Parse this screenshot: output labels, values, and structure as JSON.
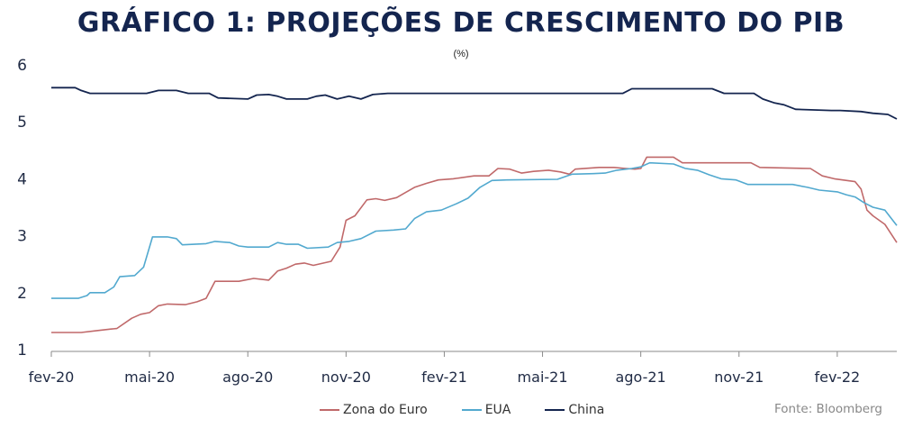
{
  "chart_data": {
    "type": "line",
    "title": "GRÁFICO 1: PROJEÇÕES DE CRESCIMENTO DO PIB",
    "subtitle": "(%)",
    "ylim": [
      1,
      6
    ],
    "yticks": [
      "1",
      "2",
      "3",
      "4",
      "5",
      "6"
    ],
    "xticks": [
      "fev-20",
      "mai-20",
      "ago-20",
      "nov-20",
      "fev-21",
      "mai-21",
      "ago-21",
      "nov-21",
      "fev-22"
    ],
    "xlim": [
      0,
      27.6
    ],
    "grid": false,
    "legend_position": "bottom",
    "source": "Fonte: Bloomberg",
    "series": [
      {
        "name": "Zona do Euro",
        "color": "#c0696a",
        "points": [
          [
            0,
            1.3
          ],
          [
            1.0,
            1.3
          ],
          [
            1.5,
            1.33
          ],
          [
            2.0,
            1.36
          ],
          [
            2.2,
            1.37
          ],
          [
            2.7,
            1.55
          ],
          [
            3.0,
            1.62
          ],
          [
            3.3,
            1.65
          ],
          [
            3.6,
            1.77
          ],
          [
            3.9,
            1.8
          ],
          [
            4.5,
            1.79
          ],
          [
            4.9,
            1.84
          ],
          [
            5.2,
            1.9
          ],
          [
            5.5,
            2.2
          ],
          [
            6.3,
            2.2
          ],
          [
            6.8,
            2.25
          ],
          [
            7.3,
            2.22
          ],
          [
            7.6,
            2.38
          ],
          [
            7.9,
            2.43
          ],
          [
            8.2,
            2.5
          ],
          [
            8.5,
            2.52
          ],
          [
            8.8,
            2.48
          ],
          [
            9.4,
            2.55
          ],
          [
            9.7,
            2.8
          ],
          [
            9.9,
            3.27
          ],
          [
            10.2,
            3.35
          ],
          [
            10.6,
            3.63
          ],
          [
            10.9,
            3.65
          ],
          [
            11.2,
            3.62
          ],
          [
            11.6,
            3.67
          ],
          [
            11.9,
            3.76
          ],
          [
            12.2,
            3.85
          ],
          [
            12.6,
            3.92
          ],
          [
            13.0,
            3.98
          ],
          [
            13.5,
            4.0
          ],
          [
            14.2,
            4.05
          ],
          [
            14.7,
            4.05
          ],
          [
            15.0,
            4.18
          ],
          [
            15.4,
            4.17
          ],
          [
            15.8,
            4.1
          ],
          [
            16.2,
            4.13
          ],
          [
            16.7,
            4.15
          ],
          [
            17.1,
            4.12
          ],
          [
            17.4,
            4.08
          ],
          [
            17.6,
            4.17
          ],
          [
            18.4,
            4.2
          ],
          [
            18.9,
            4.2
          ],
          [
            19.3,
            4.18
          ],
          [
            19.6,
            4.17
          ],
          [
            19.8,
            4.18
          ],
          [
            20.0,
            4.38
          ],
          [
            20.9,
            4.38
          ],
          [
            21.2,
            4.28
          ],
          [
            23.5,
            4.28
          ],
          [
            23.8,
            4.2
          ],
          [
            25.5,
            4.18
          ],
          [
            25.9,
            4.05
          ],
          [
            26.3,
            4.0
          ],
          [
            27.0,
            3.95
          ],
          [
            27.2,
            3.82
          ],
          [
            27.4,
            3.45
          ],
          [
            27.6,
            3.35
          ],
          [
            28.0,
            3.2
          ],
          [
            28.4,
            2.88
          ]
        ]
      },
      {
        "name": "EUA",
        "color": "#52a9cf",
        "points": [
          [
            0,
            1.9
          ],
          [
            0.9,
            1.9
          ],
          [
            1.2,
            1.95
          ],
          [
            1.3,
            2.0
          ],
          [
            1.8,
            2.0
          ],
          [
            2.1,
            2.1
          ],
          [
            2.3,
            2.28
          ],
          [
            2.8,
            2.3
          ],
          [
            3.1,
            2.45
          ],
          [
            3.4,
            2.98
          ],
          [
            3.9,
            2.98
          ],
          [
            4.2,
            2.95
          ],
          [
            4.4,
            2.84
          ],
          [
            5.2,
            2.86
          ],
          [
            5.5,
            2.9
          ],
          [
            6.0,
            2.88
          ],
          [
            6.3,
            2.82
          ],
          [
            6.6,
            2.8
          ],
          [
            7.3,
            2.8
          ],
          [
            7.6,
            2.88
          ],
          [
            7.9,
            2.85
          ],
          [
            8.3,
            2.85
          ],
          [
            8.6,
            2.78
          ],
          [
            9.3,
            2.8
          ],
          [
            9.6,
            2.88
          ],
          [
            10.0,
            2.9
          ],
          [
            10.4,
            2.95
          ],
          [
            10.9,
            3.08
          ],
          [
            11.5,
            3.1
          ],
          [
            11.9,
            3.12
          ],
          [
            12.2,
            3.3
          ],
          [
            12.6,
            3.42
          ],
          [
            13.1,
            3.45
          ],
          [
            13.6,
            3.56
          ],
          [
            14.0,
            3.66
          ],
          [
            14.4,
            3.85
          ],
          [
            14.8,
            3.97
          ],
          [
            15.3,
            3.98
          ],
          [
            17.0,
            3.99
          ],
          [
            17.5,
            4.08
          ],
          [
            18.2,
            4.09
          ],
          [
            18.6,
            4.1
          ],
          [
            19.0,
            4.15
          ],
          [
            19.5,
            4.18
          ],
          [
            19.8,
            4.21
          ],
          [
            20.1,
            4.28
          ],
          [
            20.9,
            4.26
          ],
          [
            21.3,
            4.18
          ],
          [
            21.7,
            4.15
          ],
          [
            22.1,
            4.07
          ],
          [
            22.5,
            4.0
          ],
          [
            23.0,
            3.98
          ],
          [
            23.4,
            3.9
          ],
          [
            24.9,
            3.9
          ],
          [
            25.4,
            3.85
          ],
          [
            25.8,
            3.8
          ],
          [
            26.4,
            3.77
          ],
          [
            26.7,
            3.72
          ],
          [
            27.0,
            3.68
          ],
          [
            27.3,
            3.58
          ],
          [
            27.6,
            3.5
          ],
          [
            28.0,
            3.45
          ],
          [
            28.4,
            3.18
          ]
        ]
      },
      {
        "name": "China",
        "color": "#14254f",
        "points": [
          [
            0,
            5.6
          ],
          [
            0.8,
            5.6
          ],
          [
            1.0,
            5.55
          ],
          [
            1.3,
            5.5
          ],
          [
            3.2,
            5.5
          ],
          [
            3.6,
            5.55
          ],
          [
            4.2,
            5.55
          ],
          [
            4.6,
            5.5
          ],
          [
            5.3,
            5.5
          ],
          [
            5.6,
            5.42
          ],
          [
            6.6,
            5.4
          ],
          [
            6.9,
            5.47
          ],
          [
            7.3,
            5.48
          ],
          [
            7.6,
            5.45
          ],
          [
            7.9,
            5.4
          ],
          [
            8.6,
            5.4
          ],
          [
            8.9,
            5.45
          ],
          [
            9.2,
            5.47
          ],
          [
            9.6,
            5.4
          ],
          [
            10.0,
            5.45
          ],
          [
            10.4,
            5.4
          ],
          [
            10.8,
            5.48
          ],
          [
            11.3,
            5.5
          ],
          [
            19.2,
            5.5
          ],
          [
            19.5,
            5.58
          ],
          [
            22.2,
            5.58
          ],
          [
            22.6,
            5.5
          ],
          [
            23.6,
            5.5
          ],
          [
            23.9,
            5.4
          ],
          [
            24.3,
            5.33
          ],
          [
            24.6,
            5.3
          ],
          [
            25.0,
            5.22
          ],
          [
            26.2,
            5.2
          ],
          [
            26.5,
            5.2
          ],
          [
            27.2,
            5.18
          ],
          [
            27.6,
            5.15
          ],
          [
            28.1,
            5.13
          ],
          [
            28.4,
            5.05
          ]
        ]
      }
    ]
  }
}
